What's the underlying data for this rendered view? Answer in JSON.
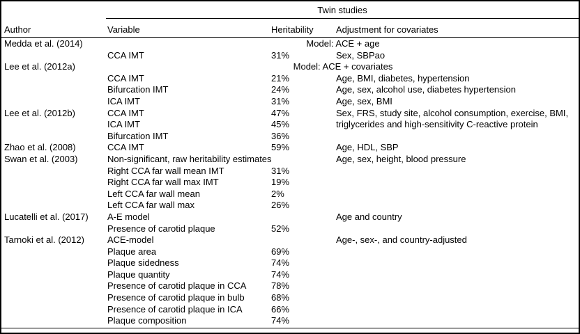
{
  "table": {
    "group_header": "Twin studies",
    "columns": {
      "author": "Author",
      "variable": "Variable",
      "heritability": "Heritability",
      "adjustment": "Adjustment for covariates"
    },
    "colors": {
      "text": "#000000",
      "background": "#ffffff",
      "rule": "#000000"
    },
    "rows": [
      {
        "author": "Medda et al. (2014)",
        "model": "Model: ACE + age"
      },
      {
        "author": "",
        "variable": "CCA IMT",
        "heritability": "31%",
        "adjustment": "Sex, SBPao"
      },
      {
        "author": "Lee et al. (2012a)",
        "model": "Model: ACE + covariates"
      },
      {
        "author": "",
        "variable": "CCA IMT",
        "heritability": "21%",
        "adjustment": "Age, BMI, diabetes, hypertension"
      },
      {
        "author": "",
        "variable": "Bifurcation IMT",
        "heritability": "24%",
        "adjustment": "Age, sex, alcohol use, diabetes hypertension"
      },
      {
        "author": "",
        "variable": "ICA IMT",
        "heritability": "31%",
        "adjustment": "Age, sex, BMI"
      },
      {
        "author": "Lee et al. (2012b)",
        "variable": "CCA IMT",
        "heritability": "47%",
        "adjustment": "Sex, FRS, study site, alcohol consumption, exercise, BMI,"
      },
      {
        "author": "",
        "variable": "ICA IMT",
        "heritability": "45%",
        "adjustment": "triglycerides and high-sensitivity C-reactive protein"
      },
      {
        "author": "",
        "variable": "Bifurcation IMT",
        "heritability": "36%",
        "adjustment": ""
      },
      {
        "author": "Zhao et al. (2008)",
        "variable": "CCA IMT",
        "heritability": "59%",
        "adjustment": "Age, HDL, SBP"
      },
      {
        "author": "Swan et al. (2003)",
        "variable": "Non-significant, raw heritability estimates",
        "heritability": "",
        "adjustment": "Age, sex, height, blood pressure"
      },
      {
        "author": "",
        "variable": "Right CCA far wall mean IMT",
        "heritability": "31%",
        "adjustment": ""
      },
      {
        "author": "",
        "variable": "Right CCA far wall max IMT",
        "heritability": "19%",
        "adjustment": ""
      },
      {
        "author": "",
        "variable": "Left CCA far wall mean",
        "heritability": "2%",
        "adjustment": ""
      },
      {
        "author": "",
        "variable": "Left CCA far wall max",
        "heritability": "26%",
        "adjustment": ""
      },
      {
        "author": "Lucatelli et al. (2017)",
        "variable": "A-E model",
        "heritability": "",
        "adjustment": "Age and country"
      },
      {
        "author": "",
        "variable": "Presence of carotid plaque",
        "heritability": "52%",
        "adjustment": ""
      },
      {
        "author": "Tarnoki et al. (2012)",
        "variable": "ACE-model",
        "heritability": "",
        "adjustment": "Age-, sex-, and country-adjusted"
      },
      {
        "author": "",
        "variable": "Plaque area",
        "heritability": "69%",
        "adjustment": ""
      },
      {
        "author": "",
        "variable": "Plaque sidedness",
        "heritability": "74%",
        "adjustment": ""
      },
      {
        "author": "",
        "variable": "Plaque quantity",
        "heritability": "74%",
        "adjustment": ""
      },
      {
        "author": "",
        "variable": "Presence of carotid plaque in CCA",
        "heritability": "78%",
        "adjustment": ""
      },
      {
        "author": "",
        "variable": "Presence of carotid plaque in bulb",
        "heritability": "68%",
        "adjustment": ""
      },
      {
        "author": "",
        "variable": "Presence of carotid plaque in ICA",
        "heritability": "66%",
        "adjustment": ""
      },
      {
        "author": "",
        "variable": "Plaque composition",
        "heritability": "74%",
        "adjustment": ""
      }
    ]
  }
}
